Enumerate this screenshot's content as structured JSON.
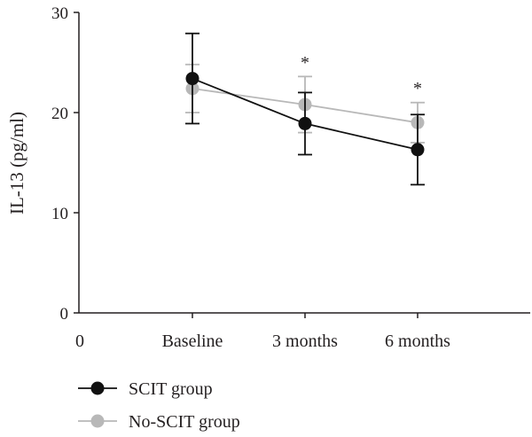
{
  "chart_data": {
    "type": "line",
    "ylabel": "IL-13 (pg/ml)",
    "xlabel": "",
    "x_origin_label": "0",
    "categories": [
      "Baseline",
      "3 months",
      "6 months"
    ],
    "ylim": [
      0,
      30
    ],
    "y_ticks": [
      0,
      10,
      20,
      30
    ],
    "series": [
      {
        "name": "SCIT group",
        "color": "#111111",
        "values": [
          23.4,
          18.9,
          16.3
        ],
        "error": [
          4.5,
          3.1,
          3.5
        ]
      },
      {
        "name": "No-SCIT group",
        "color": "#b8b8b8",
        "values": [
          22.4,
          20.8,
          19.0
        ],
        "error": [
          2.4,
          2.8,
          2.0
        ]
      }
    ],
    "annotations": [
      {
        "category": "3 months",
        "text": "*"
      },
      {
        "category": "6 months",
        "text": "*"
      }
    ],
    "legend_position": "bottom-left",
    "grid": false
  }
}
